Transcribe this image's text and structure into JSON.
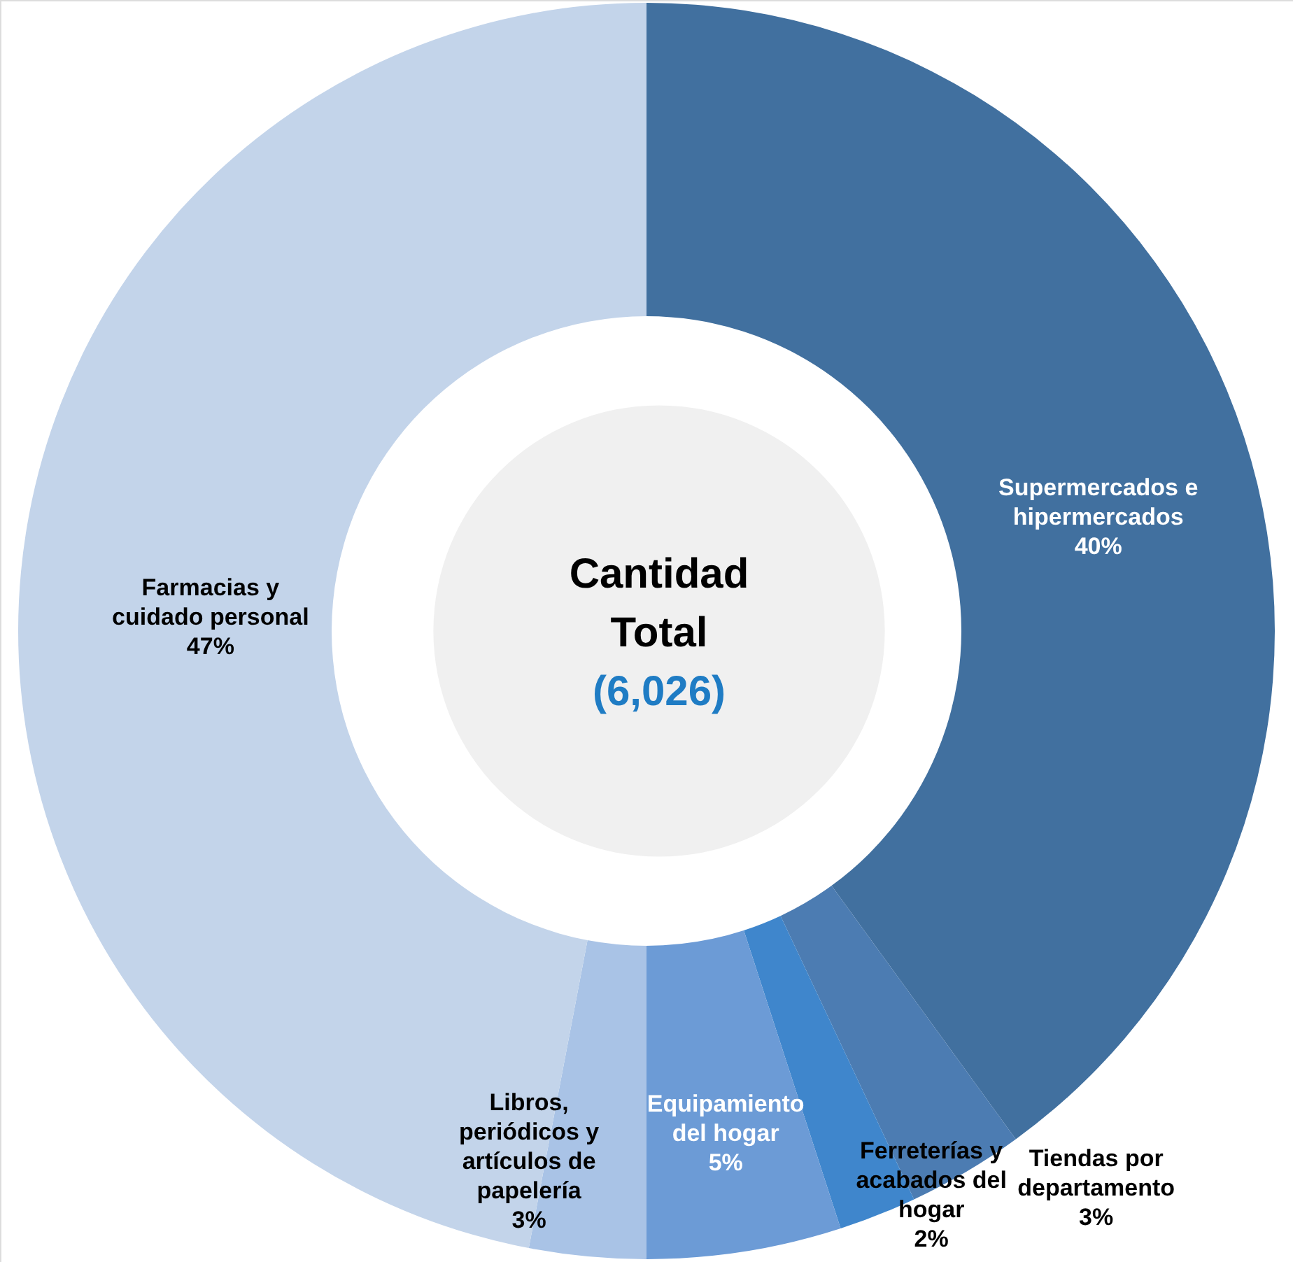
{
  "chart_data": {
    "type": "donut",
    "title": "Cantidad Total",
    "subtitle": "(6,026)",
    "categories": [
      "Supermercados e hipermercados",
      "Tiendas por departamento",
      "Ferreterías y acabados del hogar",
      "Equipamiento del hogar",
      "Libros, periódicos y artículos de papelería",
      "Farmacias y cuidado personal"
    ],
    "values": [
      40,
      3,
      2,
      5,
      3,
      47
    ],
    "colors": [
      "#41709f",
      "#4c7cb2",
      "#3f86cc",
      "#6c9bd6",
      "#a9c3e6",
      "#c3d4ea"
    ],
    "value_labels": [
      "40%",
      "3%",
      "2%",
      "5%",
      "3%",
      "47%"
    ]
  }
}
